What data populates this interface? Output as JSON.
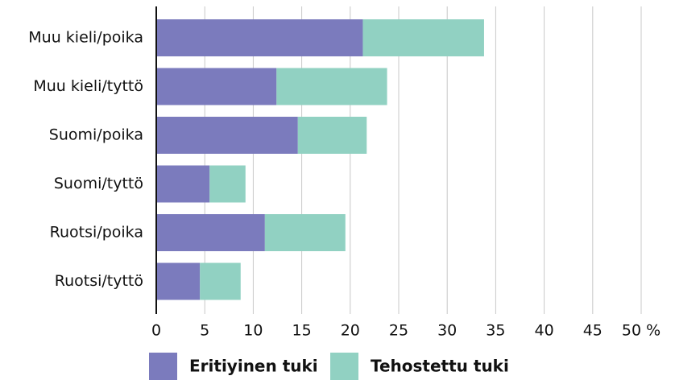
{
  "chart_data": {
    "type": "stacked_bar_horizontal",
    "categories": [
      "Muu kieli/poika",
      "Muu kieli/tyttö",
      "Suomi/poika",
      "Suomi/tyttö",
      "Ruotsi/poika",
      "Ruotsi/tyttö"
    ],
    "series": [
      {
        "name": "Eritiyinen tuki",
        "color": "#7b7bbd",
        "values": [
          21.3,
          12.4,
          14.6,
          5.5,
          11.2,
          4.5
        ]
      },
      {
        "name": "Tehostettu tuki",
        "color": "#91d1c2",
        "values": [
          12.5,
          11.4,
          7.1,
          3.7,
          8.3,
          4.2
        ]
      }
    ],
    "xlim": [
      0,
      50
    ],
    "xticks": [
      0,
      5,
      10,
      15,
      20,
      25,
      30,
      35,
      40,
      45,
      {
        "value": 50,
        "label": "50 %"
      }
    ],
    "grid": true,
    "legend": "bottom"
  }
}
